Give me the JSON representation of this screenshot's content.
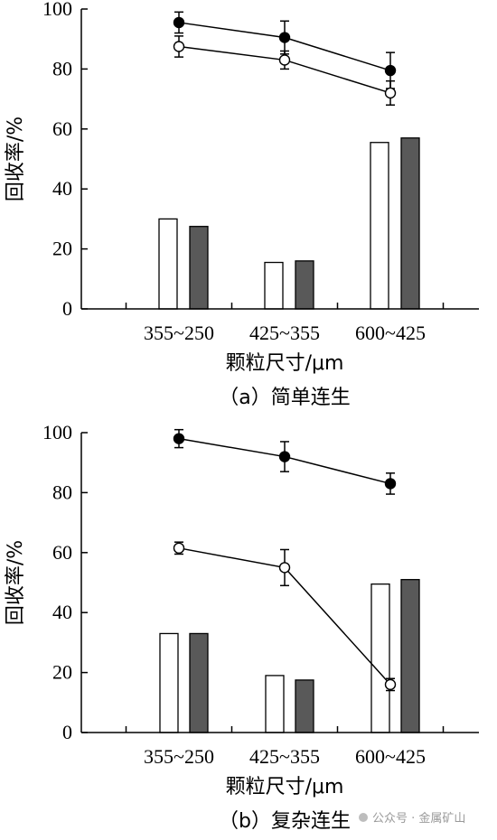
{
  "colors": {
    "open_bar": "#ffffff",
    "filled_bar": "#595959",
    "line": "#000000"
  },
  "watermark": "公众号 · 金属矿山",
  "chart_data": [
    {
      "type": "bar+line",
      "caption": "（a）简单连生",
      "xlabel": "颗粒尺寸/μm",
      "ylabel": "回收率/%",
      "ylim": [
        0,
        100
      ],
      "yticks": [
        0,
        20,
        40,
        60,
        80,
        100
      ],
      "categories": [
        "355~250",
        "425~355",
        "600~425"
      ],
      "bars": [
        {
          "style": "open",
          "values": [
            30,
            15.5,
            55.5
          ]
        },
        {
          "style": "filled",
          "values": [
            27.5,
            16,
            57
          ]
        }
      ],
      "lines": [
        {
          "marker": "filled",
          "values": [
            95.5,
            90.5,
            79.5
          ],
          "errors": [
            3.5,
            5.5,
            6
          ]
        },
        {
          "marker": "open",
          "values": [
            87.5,
            83,
            72
          ],
          "errors": [
            3.5,
            3,
            4
          ]
        }
      ]
    },
    {
      "type": "bar+line",
      "caption": "（b）复杂连生",
      "xlabel": "颗粒尺寸/μm",
      "ylabel": "回收率/%",
      "ylim": [
        0,
        100
      ],
      "yticks": [
        0,
        20,
        40,
        60,
        80,
        100
      ],
      "categories": [
        "355~250",
        "425~355",
        "600~425"
      ],
      "bars": [
        {
          "style": "open",
          "values": [
            33,
            19,
            49.5
          ]
        },
        {
          "style": "filled",
          "values": [
            33,
            17.5,
            51
          ]
        }
      ],
      "lines": [
        {
          "marker": "filled",
          "values": [
            98,
            92,
            83
          ],
          "errors": [
            3,
            5,
            3.5
          ]
        },
        {
          "marker": "open",
          "values": [
            61.5,
            55,
            16
          ],
          "errors": [
            2,
            6,
            2
          ]
        }
      ]
    }
  ]
}
